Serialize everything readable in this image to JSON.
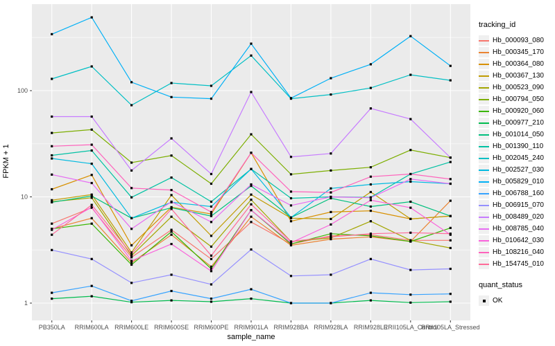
{
  "figure": {
    "panel_background": "#EBEBEB",
    "grid_color": "#FFFFFF",
    "tick_color": "#333333",
    "tick_label_color": "#4D4D4D",
    "marker_color": "#000000"
  },
  "axes": {
    "x_title": "sample_name",
    "y_title": "FPKM + 1",
    "y_tick_labels": [
      "1",
      "10",
      "100"
    ],
    "y_tick_values": [
      1,
      10,
      100
    ],
    "y_minor_values": [
      3.162,
      31.62,
      316.2
    ]
  },
  "legend": {
    "color_title": "tracking_id",
    "shape_title": "quant_status",
    "shape_items": [
      {
        "label": "OK"
      }
    ]
  },
  "chart_data": {
    "type": "line",
    "title": "",
    "xlabel": "sample_name",
    "ylabel": "FPKM + 1",
    "y_scale": "log10",
    "ylim": [
      1,
      700
    ],
    "grid": true,
    "legend_position": "right",
    "point_marker": "small-black-square",
    "categories": [
      "PB350LA",
      "RRIM600LA",
      "RRIM600LE",
      "RRIM600SE",
      "RRIM600PE",
      "RRIM901LA",
      "RRIM928BA",
      "RRIM928LA",
      "RRIM928LE",
      "RRII105LA_Control",
      "RRII105LA_Stressed"
    ],
    "series": [
      {
        "name": "Hb_000093_080",
        "color": "#F8766D",
        "values": [
          5.6,
          7.9,
          2.7,
          4.9,
          2.6,
          5.8,
          3.6,
          4.3,
          4.4,
          3.9,
          3.9
        ]
      },
      {
        "name": "Hb_000345_170",
        "color": "#EA8331",
        "values": [
          5.0,
          6.3,
          2.4,
          4.4,
          2.2,
          6.5,
          3.5,
          4.0,
          4.2,
          3.8,
          9.2
        ]
      },
      {
        "name": "Hb_000364_080",
        "color": "#D89000",
        "values": [
          11.8,
          16.1,
          3.5,
          8.0,
          6.9,
          26.0,
          5.9,
          7.2,
          7.4,
          6.2,
          6.6
        ]
      },
      {
        "name": "Hb_000367_130",
        "color": "#C09B00",
        "values": [
          9.3,
          10.5,
          3.0,
          10.4,
          4.3,
          10.5,
          6.3,
          6.2,
          11.1,
          6.2,
          6.6
        ]
      },
      {
        "name": "Hb_000523_090",
        "color": "#A3A500",
        "values": [
          9.0,
          9.8,
          2.8,
          6.5,
          3.4,
          9.4,
          3.8,
          4.1,
          5.9,
          3.9,
          3.3
        ]
      },
      {
        "name": "Hb_000794_050",
        "color": "#7CAE00",
        "values": [
          40,
          43,
          21,
          24.5,
          13.3,
          38.8,
          16.3,
          17.7,
          19,
          27.6,
          23.4
        ]
      },
      {
        "name": "Hb_000920_060",
        "color": "#39B600",
        "values": [
          5.0,
          5.6,
          2.3,
          4.7,
          2.1,
          7.5,
          3.6,
          4.5,
          4.3,
          3.8,
          5.1
        ]
      },
      {
        "name": "Hb_000977_210",
        "color": "#00BB4E",
        "values": [
          1.1,
          1.16,
          1.02,
          1.06,
          1.03,
          1.1,
          1.0,
          1.0,
          1.06,
          1.01,
          1.03
        ]
      },
      {
        "name": "Hb_001014_050",
        "color": "#00BF7D",
        "values": [
          8.9,
          10.2,
          6.3,
          7.9,
          6.6,
          12.7,
          6.4,
          9.7,
          8.1,
          9.0,
          6.6
        ]
      },
      {
        "name": "Hb_001390_110",
        "color": "#00C1A3",
        "values": [
          24.6,
          27.3,
          9.9,
          15.2,
          9.0,
          18.3,
          9.7,
          10.0,
          9.9,
          16.4,
          21.3
        ]
      },
      {
        "name": "Hb_002045_240",
        "color": "#00BFC4",
        "values": [
          129,
          169,
          73,
          118,
          111,
          214,
          84,
          92,
          106,
          141,
          125
        ]
      },
      {
        "name": "Hb_002527_030",
        "color": "#00BAE0",
        "values": [
          23.0,
          20.5,
          6.3,
          8.9,
          8.1,
          18.3,
          6.4,
          12.0,
          13.1,
          13.9,
          13.3
        ]
      },
      {
        "name": "Hb_005829_010",
        "color": "#00B0F6",
        "values": [
          340,
          490,
          120,
          87,
          84,
          277,
          85,
          131,
          177,
          326,
          171
        ]
      },
      {
        "name": "Hb_006788_160",
        "color": "#35A2FF",
        "values": [
          1.25,
          1.45,
          1.05,
          1.3,
          1.1,
          1.35,
          1.0,
          1.0,
          1.25,
          1.2,
          1.22
        ]
      },
      {
        "name": "Hb_006915_070",
        "color": "#9590FF",
        "values": [
          3.16,
          2.6,
          1.55,
          1.85,
          1.5,
          3.2,
          1.8,
          1.85,
          2.6,
          2.05,
          2.1
        ]
      },
      {
        "name": "Hb_008489_020",
        "color": "#C77CFF",
        "values": [
          57,
          57,
          17.7,
          35.5,
          16.4,
          97,
          23.8,
          25.6,
          68,
          54,
          23.4
        ]
      },
      {
        "name": "Hb_008785_040",
        "color": "#E76BF3",
        "values": [
          16.2,
          13.5,
          5.0,
          9.0,
          5.8,
          13.1,
          8.3,
          10.0,
          9.8,
          14.7,
          13.3
        ]
      },
      {
        "name": "Hb_010642_030",
        "color": "#FA62DB",
        "values": [
          4.9,
          8.0,
          2.5,
          3.6,
          2.0,
          7.5,
          3.7,
          5.5,
          9.3,
          7.9,
          4.4
        ]
      },
      {
        "name": "Hb_108216_040",
        "color": "#FF62BC",
        "values": [
          30,
          31,
          12.1,
          11.6,
          7.2,
          26,
          11.2,
          11.0,
          15.5,
          16.4,
          14.7
        ]
      },
      {
        "name": "Hb_154745_010",
        "color": "#FF6A98",
        "values": [
          4.4,
          8.4,
          2.9,
          7.7,
          2.8,
          8.5,
          3.8,
          4.2,
          4.5,
          4.6,
          4.5
        ]
      }
    ],
    "quant_status": "OK"
  }
}
